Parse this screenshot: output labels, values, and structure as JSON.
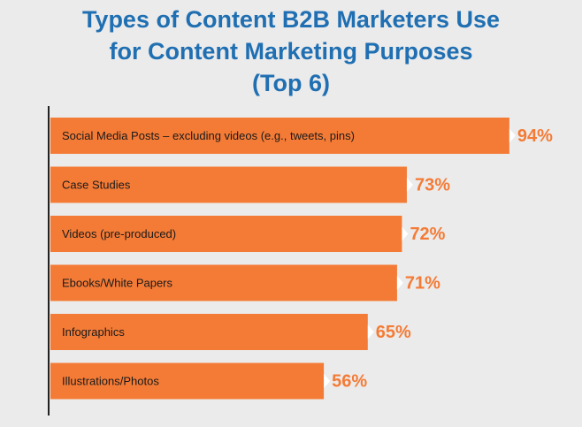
{
  "chart_data": {
    "type": "bar",
    "orientation": "horizontal",
    "title": [
      "Types of Content B2B Marketers Use",
      "for Content Marketing Purposes",
      "(Top 6)"
    ],
    "categories": [
      "Social Media Posts – excluding videos (e.g., tweets, pins)",
      "Case Studies",
      "Videos (pre-produced)",
      "Ebooks/White Papers",
      "Infographics",
      "Illustrations/Photos"
    ],
    "values": [
      94,
      73,
      72,
      71,
      65,
      56
    ],
    "value_labels": [
      "94%",
      "73%",
      "72%",
      "71%",
      "65%",
      "56%"
    ],
    "color": "#f47b36",
    "xlim": [
      0,
      100
    ]
  }
}
